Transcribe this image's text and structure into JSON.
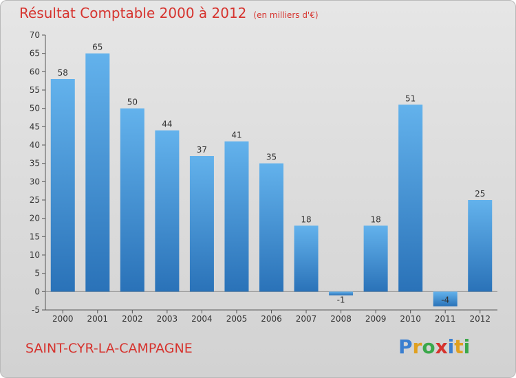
{
  "title": "Résultat Comptable 2000 à 2012",
  "unit": "(en milliers d'€)",
  "place": "SAINT-CYR-LA-CAMPAGNE",
  "logo": {
    "letters": [
      {
        "char": "P",
        "color": "#3a7fd0"
      },
      {
        "char": "r",
        "color": "#e0a020"
      },
      {
        "char": "o",
        "color": "#3aa84a"
      },
      {
        "char": "x",
        "color": "#d6332e"
      },
      {
        "char": "i",
        "color": "#3a7fd0"
      },
      {
        "char": "t",
        "color": "#e0a020"
      },
      {
        "char": "i",
        "color": "#3aa84a"
      }
    ]
  },
  "colors": {
    "bar": "#3e8fd6",
    "bar_light": "#63b2ec",
    "bar_dark": "#2a72b8",
    "text": "#333333",
    "accent": "#d6332e"
  },
  "chart_data": {
    "type": "bar",
    "title": "Résultat Comptable 2000 à 2012",
    "ylabel": "en milliers d'€",
    "categories": [
      "2000",
      "2001",
      "2002",
      "2003",
      "2004",
      "2005",
      "2006",
      "2007",
      "2008",
      "2009",
      "2010",
      "2011",
      "2012"
    ],
    "values": [
      58,
      65,
      50,
      44,
      37,
      41,
      35,
      18,
      -1,
      18,
      51,
      -4,
      25
    ],
    "labels": [
      "58",
      "65",
      "50",
      "44",
      "37",
      "41",
      "35",
      "18",
      "-1",
      "18",
      "51",
      "-4",
      "25"
    ],
    "ylim": [
      -5,
      70
    ],
    "yticks": [
      -5,
      0,
      5,
      10,
      15,
      20,
      25,
      30,
      35,
      40,
      45,
      50,
      55,
      60,
      65,
      70
    ],
    "grid": false
  }
}
